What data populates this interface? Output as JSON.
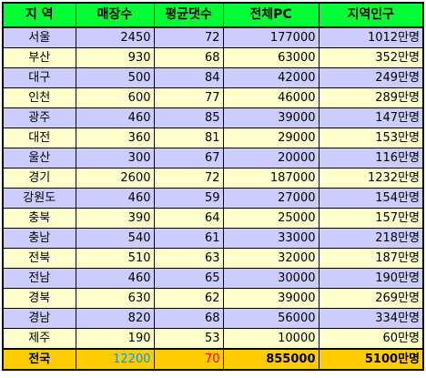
{
  "table": {
    "headers": [
      "지 역",
      "매장수",
      "평균댓수",
      "전체PC",
      "지역인구"
    ],
    "rows": [
      {
        "region": "서울",
        "stores": "2450",
        "avg_seats": "72",
        "total_pc": "177000",
        "population": "1012만명"
      },
      {
        "region": "부산",
        "stores": "930",
        "avg_seats": "68",
        "total_pc": "63000",
        "population": "352만명"
      },
      {
        "region": "대구",
        "stores": "500",
        "avg_seats": "84",
        "total_pc": "42000",
        "population": "249만명"
      },
      {
        "region": "인천",
        "stores": "600",
        "avg_seats": "77",
        "total_pc": "46000",
        "population": "289만명"
      },
      {
        "region": "광주",
        "stores": "460",
        "avg_seats": "85",
        "total_pc": "39000",
        "population": "147만명"
      },
      {
        "region": "대전",
        "stores": "360",
        "avg_seats": "81",
        "total_pc": "29000",
        "population": "153만명"
      },
      {
        "region": "울산",
        "stores": "300",
        "avg_seats": "67",
        "total_pc": "20000",
        "population": "116만명"
      },
      {
        "region": "경기",
        "stores": "2600",
        "avg_seats": "72",
        "total_pc": "187000",
        "population": "1232만명"
      },
      {
        "region": "강원도",
        "stores": "460",
        "avg_seats": "59",
        "total_pc": "27000",
        "population": "154만명"
      },
      {
        "region": "충북",
        "stores": "390",
        "avg_seats": "64",
        "total_pc": "25000",
        "population": "157만명"
      },
      {
        "region": "충남",
        "stores": "540",
        "avg_seats": "61",
        "total_pc": "33000",
        "population": "218만명"
      },
      {
        "region": "전북",
        "stores": "510",
        "avg_seats": "63",
        "total_pc": "32000",
        "population": "187만명"
      },
      {
        "region": "전남",
        "stores": "460",
        "avg_seats": "65",
        "total_pc": "30000",
        "population": "190만명"
      },
      {
        "region": "경북",
        "stores": "630",
        "avg_seats": "62",
        "total_pc": "39000",
        "population": "269만명"
      },
      {
        "region": "경남",
        "stores": "820",
        "avg_seats": "68",
        "total_pc": "56000",
        "population": "334만명"
      },
      {
        "region": "제주",
        "stores": "190",
        "avg_seats": "53",
        "total_pc": "10000",
        "population": "60만명"
      }
    ],
    "total": {
      "region": "전국",
      "stores": "12200",
      "avg_seats": "70",
      "total_pc": "855000",
      "population": "5100만명"
    }
  },
  "colors": {
    "header_bg": "#00ff33",
    "row_odd_bg": "#ccccff",
    "row_even_bg": "#ffffcc",
    "total_bg": "#ffcc00",
    "total_stores_text": "#0099ff",
    "total_seats_text": "#ff0000"
  }
}
